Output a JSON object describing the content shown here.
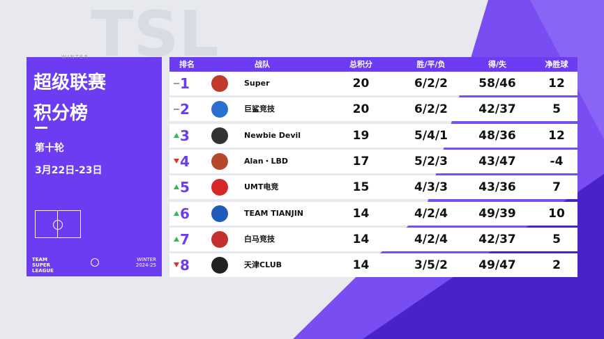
{
  "panel": {
    "season_top": "WINTER",
    "title_line1": "超级联赛",
    "title_line2": "积分榜",
    "round": "第十轮",
    "dates": "3月22日-23日",
    "footer_left": "TEAM SUPER LEAGUE",
    "footer_right_1": "WINTER",
    "footer_right_2": "2024-25"
  },
  "table": {
    "headers": [
      "排名",
      "战队",
      "总积分",
      "胜/平/负",
      "得/失",
      "净胜球"
    ],
    "rows": [
      [
        1,
        "Super",
        20,
        "6/2/2",
        "58/46",
        12
      ],
      [
        2,
        "巨鲨竞技",
        20,
        "6/2/2",
        "42/37",
        5
      ],
      [
        3,
        "Newbie Devil",
        19,
        "5/4/1",
        "48/36",
        12
      ],
      [
        4,
        "Alan・LBD",
        17,
        "5/2/3",
        "43/47",
        -4
      ],
      [
        5,
        "UMT电竞",
        15,
        "4/3/3",
        "43/36",
        7
      ],
      [
        6,
        "TEAM TIANJIN",
        14,
        "4/2/4",
        "49/39",
        10
      ],
      [
        7,
        "白马竞技",
        14,
        "4/2/4",
        "42/37",
        5
      ],
      [
        8,
        "天津CLUB",
        14,
        "3/5/2",
        "49/47",
        2
      ]
    ]
  }
}
